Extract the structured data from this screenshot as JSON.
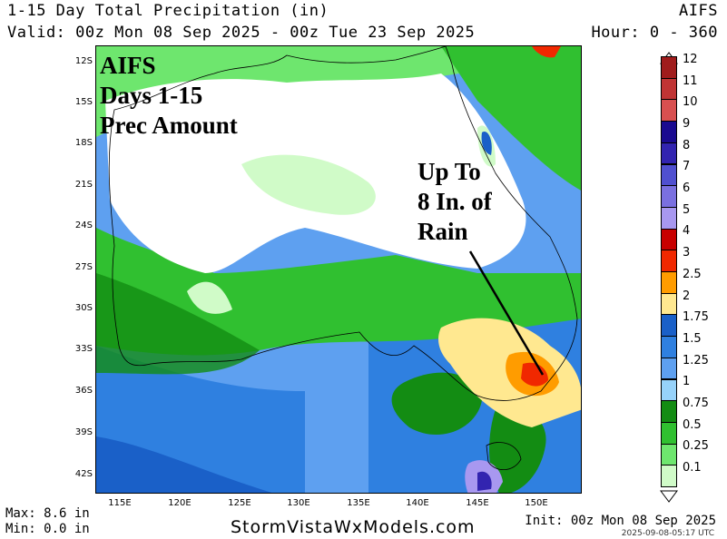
{
  "header": {
    "title": "1-15 Day Total Precipitation (in)",
    "model": "AIFS",
    "valid": "Valid: 00z Mon 08 Sep 2025 - 00z Tue 23 Sep 2025",
    "hour": "Hour: 0 - 360"
  },
  "overlay": {
    "line1": "AIFS",
    "line2": "Days 1-15",
    "line3": "Prec Amount",
    "callout1": "Up To",
    "callout2": "8 In. of",
    "callout3": "Rain"
  },
  "lat_labels": [
    "12S",
    "15S",
    "18S",
    "21S",
    "24S",
    "27S",
    "30S",
    "33S",
    "36S",
    "39S",
    "42S"
  ],
  "lon_labels": [
    "115E",
    "120E",
    "125E",
    "130E",
    "135E",
    "140E",
    "145E",
    "150E"
  ],
  "legend": {
    "labels": [
      "12",
      "11",
      "10",
      "9",
      "8",
      "7",
      "6",
      "5",
      "4",
      "3",
      "2.5",
      "2",
      "1.75",
      "1.5",
      "1.25",
      "1",
      "0.75",
      "0.5",
      "0.25",
      "0.1"
    ],
    "colors": [
      "#a01c1c",
      "#c03434",
      "#d85050",
      "#1a0a90",
      "#3224b0",
      "#5050d0",
      "#7a70e0",
      "#a898f0",
      "#c80000",
      "#f02800",
      "#ff9c00",
      "#ffe890",
      "#1a60c8",
      "#2f80e0",
      "#5ea0f0",
      "#96d2fa",
      "#138c13",
      "#30c030",
      "#6ee66e",
      "#d0fbc8"
    ]
  },
  "footer": {
    "max": "Max: 8.6 in",
    "min": "Min: 0.0 in",
    "site": "StormVistaWxModels.com",
    "init": "Init: 00z Mon 08 Sep 2025",
    "stamp": "2025-09-08-05:17 UTC"
  }
}
